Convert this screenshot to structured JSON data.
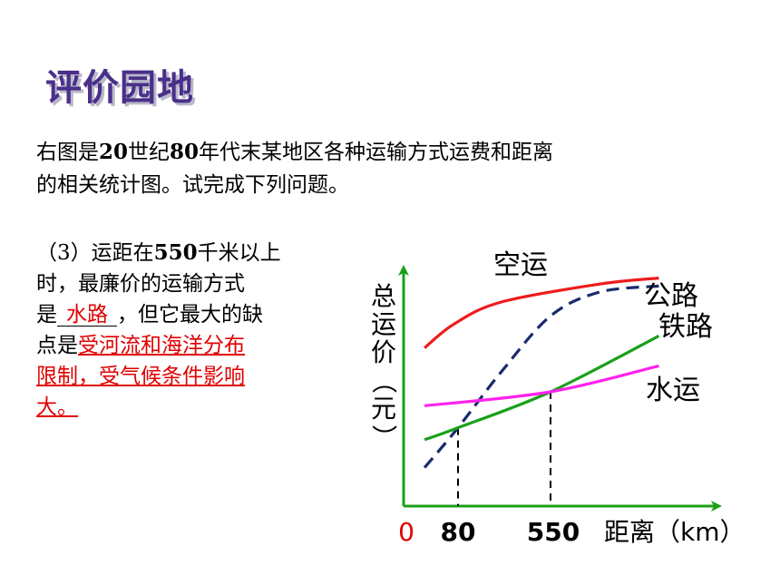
{
  "page": {
    "title": "评价园地",
    "intro_line1_pre": "右图是",
    "intro_line1_num1": "20",
    "intro_line1_mid": "世纪",
    "intro_line1_num2": "80",
    "intro_line1_post": "年代末某地区各种运输方式运费和距离",
    "intro_line2": "的相关统计图。试完成下列问题。"
  },
  "question": {
    "prefix": "（3）运距在",
    "distance": "550",
    "line1_post": "千米以上",
    "line2": "时，最廉价的运输方式",
    "line3_pre": "是",
    "answer1": "水路",
    "line3_post": "，但它最大的缺",
    "line4_pre": "点是",
    "answer2_part1": "受河流和海洋分布",
    "answer2_part2": "限制，受气候条件影响",
    "answer2_part3": "大。"
  },
  "chart_data": {
    "type": "line",
    "ylabel": "总运价（元）",
    "xlabel": "距离（km）",
    "x_ticks": [
      "0",
      "80",
      "550"
    ],
    "series": [
      {
        "name": "空运",
        "color": "#ee1c1c",
        "style": "solid",
        "points": [
          [
            -90,
            0.62
          ],
          [
            60,
            0.74
          ],
          [
            300,
            0.85
          ],
          [
            800,
            0.94
          ],
          [
            1100,
            0.97
          ]
        ]
      },
      {
        "name": "公路",
        "color": "#1a2a6c",
        "style": "dashed",
        "points": [
          [
            -90,
            0.02
          ],
          [
            80,
            0.22
          ],
          [
            300,
            0.5
          ],
          [
            550,
            0.78
          ],
          [
            800,
            0.9
          ],
          [
            1100,
            0.93
          ]
        ]
      },
      {
        "name": "铁路",
        "color": "#1aa01a",
        "style": "solid",
        "points": [
          [
            -90,
            0.16
          ],
          [
            80,
            0.22
          ],
          [
            550,
            0.4
          ],
          [
            1100,
            0.68
          ]
        ]
      },
      {
        "name": "水运",
        "color": "#ff22ee",
        "style": "solid",
        "points": [
          [
            -90,
            0.33
          ],
          [
            550,
            0.4
          ],
          [
            1100,
            0.53
          ]
        ]
      }
    ],
    "reference_x": [
      80,
      550
    ],
    "origin_color": "#e00000"
  }
}
